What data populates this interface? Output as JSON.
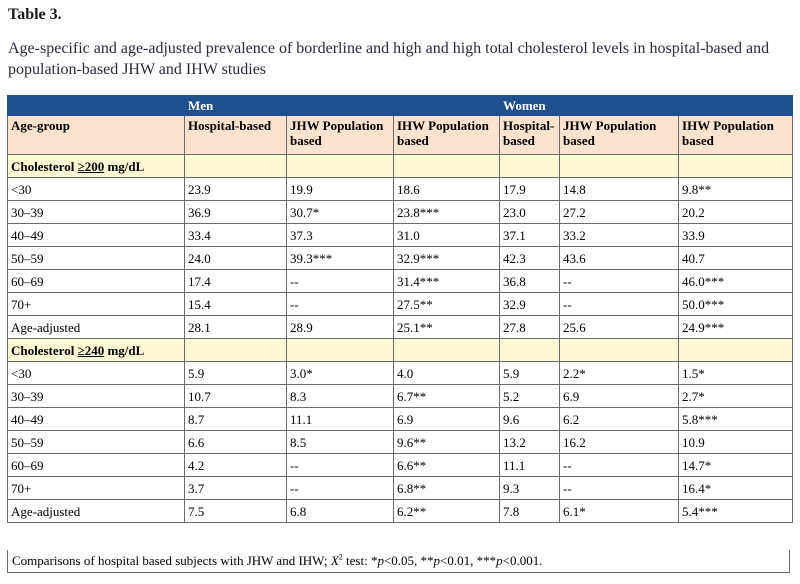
{
  "table_label": "Table 3.",
  "caption": "Age-specific and age-adjusted prevalence of borderline and high and high total cholesterol levels in hospital-based and population-based JHW and IHW studies",
  "group_headers": {
    "blank": "",
    "men": "Men",
    "women": "Women"
  },
  "column_headers": [
    "Age-group",
    "Hospital-based",
    "JHW Population based",
    "IHW Population based",
    "Hospital-based",
    "JHW Population based",
    "IHW Population based"
  ],
  "sections": [
    {
      "label_prefix": "Cholesterol ",
      "label_threshold": "≥200",
      "label_suffix": " mg/dL",
      "rows": [
        [
          "<30",
          "23.9",
          "19.9",
          "18.6",
          "17.9",
          "14.8",
          "9.8**"
        ],
        [
          "30–39",
          "36.9",
          "30.7*",
          "23.8***",
          "23.0",
          "27.2",
          "20.2"
        ],
        [
          "40–49",
          "33.4",
          "37.3",
          "31.0",
          "37.1",
          "33.2",
          "33.9"
        ],
        [
          "50–59",
          "24.0",
          "39.3***",
          "32.9***",
          "42.3",
          "43.6",
          "40.7"
        ],
        [
          "60–69",
          "17.4",
          "--",
          "31.4***",
          "36.8",
          "--",
          "46.0***"
        ],
        [
          "70+",
          "15.4",
          "--",
          "27.5**",
          "32.9",
          "--",
          "50.0***"
        ],
        [
          "Age-adjusted",
          "28.1",
          "28.9",
          "25.1**",
          "27.8",
          "25.6",
          "24.9***"
        ]
      ]
    },
    {
      "label_prefix": "Cholesterol ",
      "label_threshold": "≥240",
      "label_suffix": " mg/dL",
      "rows": [
        [
          "<30",
          "5.9",
          "3.0*",
          "4.0",
          "5.9",
          "2.2*",
          "1.5*"
        ],
        [
          "30–39",
          "10.7",
          "8.3",
          "6.7**",
          "5.2",
          "6.9",
          "2.7*"
        ],
        [
          "40–49",
          "8.7",
          "11.1",
          "6.9",
          "9.6",
          "6.2",
          "5.8***"
        ],
        [
          "50–59",
          "6.6",
          "8.5",
          "9.6**",
          "13.2",
          "16.2",
          "10.9"
        ],
        [
          "60–69",
          "4.2",
          "--",
          "6.6**",
          "11.1",
          "--",
          "14.7*"
        ],
        [
          "70+",
          "3.7",
          "--",
          "6.8**",
          "9.3",
          "--",
          "16.4*"
        ],
        [
          "Age-adjusted",
          "7.5",
          "6.8",
          "6.2**",
          "7.8",
          "6.1*",
          "5.4***"
        ]
      ]
    }
  ],
  "footnote": {
    "lead": "Comparisons of hospital based subjects with JHW and IHW; ",
    "x": "X",
    "sup": "2",
    "test": " test: *",
    "p1": "p",
    "t1": "<0.05, **",
    "p2": "p",
    "t2": "<0.01, ***",
    "p3": "p",
    "t3": "<0.001."
  }
}
